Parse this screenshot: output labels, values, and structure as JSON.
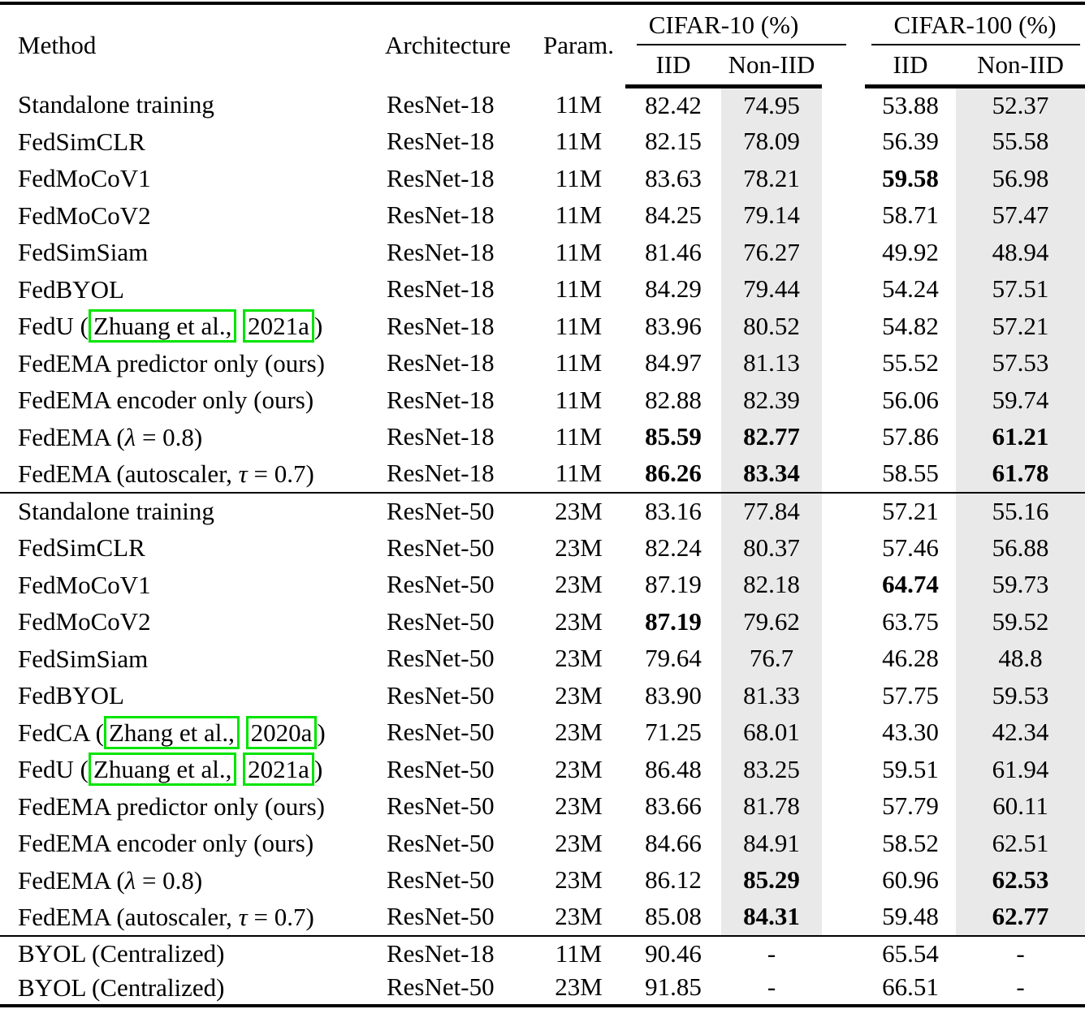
{
  "table": {
    "colors": {
      "shaded": "#e9e9e9",
      "link_box": "#00e400",
      "rule": "#000000"
    },
    "header": {
      "method": "Method",
      "architecture": "Architecture",
      "param": "Param.",
      "group1": "CIFAR-10 (%)",
      "group2": "CIFAR-100 (%)",
      "sub": [
        "IID",
        "Non-IID",
        "IID",
        "Non-IID"
      ]
    },
    "sections": [
      {
        "shaded": true,
        "rows": [
          {
            "method": [
              {
                "t": "Standalone training"
              }
            ],
            "arch": "ResNet-18",
            "param": "11M",
            "values": [
              {
                "v": "82.42"
              },
              {
                "v": "74.95"
              },
              {
                "v": "53.88"
              },
              {
                "v": "52.37"
              }
            ]
          },
          {
            "method": [
              {
                "t": "FedSimCLR"
              }
            ],
            "arch": "ResNet-18",
            "param": "11M",
            "values": [
              {
                "v": "82.15"
              },
              {
                "v": "78.09"
              },
              {
                "v": "56.39"
              },
              {
                "v": "55.58"
              }
            ]
          },
          {
            "method": [
              {
                "t": "FedMoCoV1"
              }
            ],
            "arch": "ResNet-18",
            "param": "11M",
            "values": [
              {
                "v": "83.63"
              },
              {
                "v": "78.21"
              },
              {
                "v": "59.58",
                "b": true
              },
              {
                "v": "56.98"
              }
            ]
          },
          {
            "method": [
              {
                "t": "FedMoCoV2"
              }
            ],
            "arch": "ResNet-18",
            "param": "11M",
            "values": [
              {
                "v": "84.25"
              },
              {
                "v": "79.14"
              },
              {
                "v": "58.71"
              },
              {
                "v": "57.47"
              }
            ]
          },
          {
            "method": [
              {
                "t": "FedSimSiam"
              }
            ],
            "arch": "ResNet-18",
            "param": "11M",
            "values": [
              {
                "v": "81.46"
              },
              {
                "v": "76.27"
              },
              {
                "v": "49.92"
              },
              {
                "v": "48.94"
              }
            ]
          },
          {
            "method": [
              {
                "t": "FedBYOL"
              }
            ],
            "arch": "ResNet-18",
            "param": "11M",
            "values": [
              {
                "v": "84.29"
              },
              {
                "v": "79.44"
              },
              {
                "v": "54.24"
              },
              {
                "v": "57.51"
              }
            ]
          },
          {
            "method": [
              {
                "t": "FedU ("
              },
              {
                "t": "Zhuang et al.,",
                "box": true
              },
              {
                "t": " "
              },
              {
                "t": "2021a",
                "box": true
              },
              {
                "t": ")"
              }
            ],
            "arch": "ResNet-18",
            "param": "11M",
            "values": [
              {
                "v": "83.96"
              },
              {
                "v": "80.52"
              },
              {
                "v": "54.82"
              },
              {
                "v": "57.21"
              }
            ]
          },
          {
            "method": [
              {
                "t": "FedEMA predictor only (ours)"
              }
            ],
            "arch": "ResNet-18",
            "param": "11M",
            "values": [
              {
                "v": "84.97"
              },
              {
                "v": "81.13"
              },
              {
                "v": "55.52"
              },
              {
                "v": "57.53"
              }
            ]
          },
          {
            "method": [
              {
                "t": "FedEMA encoder only (ours)"
              }
            ],
            "arch": "ResNet-18",
            "param": "11M",
            "values": [
              {
                "v": "82.88"
              },
              {
                "v": "82.39"
              },
              {
                "v": "56.06"
              },
              {
                "v": "59.74"
              }
            ]
          },
          {
            "method": [
              {
                "t": "FedEMA ("
              },
              {
                "t": "λ",
                "it": true
              },
              {
                "t": " = 0.8)"
              }
            ],
            "arch": "ResNet-18",
            "param": "11M",
            "values": [
              {
                "v": "85.59",
                "b": true
              },
              {
                "v": "82.77",
                "b": true
              },
              {
                "v": "57.86"
              },
              {
                "v": "61.21",
                "b": true
              }
            ]
          },
          {
            "method": [
              {
                "t": "FedEMA (autoscaler, "
              },
              {
                "t": "τ",
                "it": true
              },
              {
                "t": " = 0.7)"
              }
            ],
            "arch": "ResNet-18",
            "param": "11M",
            "values": [
              {
                "v": "86.26",
                "b": true
              },
              {
                "v": "83.34",
                "b": true
              },
              {
                "v": "58.55"
              },
              {
                "v": "61.78",
                "b": true
              }
            ]
          }
        ]
      },
      {
        "shaded": true,
        "rows": [
          {
            "method": [
              {
                "t": "Standalone training"
              }
            ],
            "arch": "ResNet-50",
            "param": "23M",
            "values": [
              {
                "v": "83.16"
              },
              {
                "v": "77.84"
              },
              {
                "v": "57.21"
              },
              {
                "v": "55.16"
              }
            ]
          },
          {
            "method": [
              {
                "t": "FedSimCLR"
              }
            ],
            "arch": "ResNet-50",
            "param": "23M",
            "values": [
              {
                "v": "82.24"
              },
              {
                "v": "80.37"
              },
              {
                "v": "57.46"
              },
              {
                "v": "56.88"
              }
            ]
          },
          {
            "method": [
              {
                "t": "FedMoCoV1"
              }
            ],
            "arch": "ResNet-50",
            "param": "23M",
            "values": [
              {
                "v": "87.19"
              },
              {
                "v": "82.18"
              },
              {
                "v": "64.74",
                "b": true
              },
              {
                "v": "59.73"
              }
            ]
          },
          {
            "method": [
              {
                "t": "FedMoCoV2"
              }
            ],
            "arch": "ResNet-50",
            "param": "23M",
            "values": [
              {
                "v": "87.19",
                "b": true
              },
              {
                "v": "79.62"
              },
              {
                "v": "63.75"
              },
              {
                "v": "59.52"
              }
            ]
          },
          {
            "method": [
              {
                "t": "FedSimSiam"
              }
            ],
            "arch": "ResNet-50",
            "param": "23M",
            "values": [
              {
                "v": "79.64"
              },
              {
                "v": "76.7"
              },
              {
                "v": "46.28"
              },
              {
                "v": "48.8"
              }
            ]
          },
          {
            "method": [
              {
                "t": "FedBYOL"
              }
            ],
            "arch": "ResNet-50",
            "param": "23M",
            "values": [
              {
                "v": "83.90"
              },
              {
                "v": "81.33"
              },
              {
                "v": "57.75"
              },
              {
                "v": "59.53"
              }
            ]
          },
          {
            "method": [
              {
                "t": "FedCA ("
              },
              {
                "t": "Zhang et al.,",
                "box": true
              },
              {
                "t": " "
              },
              {
                "t": "2020a",
                "box": true
              },
              {
                "t": ")"
              }
            ],
            "arch": "ResNet-50",
            "param": "23M",
            "values": [
              {
                "v": "71.25"
              },
              {
                "v": "68.01"
              },
              {
                "v": "43.30"
              },
              {
                "v": "42.34"
              }
            ]
          },
          {
            "method": [
              {
                "t": "FedU ("
              },
              {
                "t": "Zhuang et al.,",
                "box": true
              },
              {
                "t": " "
              },
              {
                "t": "2021a",
                "box": true
              },
              {
                "t": ")"
              }
            ],
            "arch": "ResNet-50",
            "param": "23M",
            "values": [
              {
                "v": "86.48"
              },
              {
                "v": "83.25"
              },
              {
                "v": "59.51"
              },
              {
                "v": "61.94"
              }
            ]
          },
          {
            "method": [
              {
                "t": "FedEMA predictor only (ours)"
              }
            ],
            "arch": "ResNet-50",
            "param": "23M",
            "values": [
              {
                "v": "83.66"
              },
              {
                "v": "81.78"
              },
              {
                "v": "57.79"
              },
              {
                "v": "60.11"
              }
            ]
          },
          {
            "method": [
              {
                "t": "FedEMA encoder only (ours)"
              }
            ],
            "arch": "ResNet-50",
            "param": "23M",
            "values": [
              {
                "v": "84.66"
              },
              {
                "v": "84.91"
              },
              {
                "v": "58.52"
              },
              {
                "v": "62.51"
              }
            ]
          },
          {
            "method": [
              {
                "t": "FedEMA ("
              },
              {
                "t": "λ",
                "it": true
              },
              {
                "t": " = 0.8)"
              }
            ],
            "arch": "ResNet-50",
            "param": "23M",
            "values": [
              {
                "v": "86.12"
              },
              {
                "v": "85.29",
                "b": true
              },
              {
                "v": "60.96"
              },
              {
                "v": "62.53",
                "b": true
              }
            ]
          },
          {
            "method": [
              {
                "t": "FedEMA (autoscaler, "
              },
              {
                "t": "τ",
                "it": true
              },
              {
                "t": " = 0.7)"
              }
            ],
            "arch": "ResNet-50",
            "param": "23M",
            "values": [
              {
                "v": "85.08"
              },
              {
                "v": "84.31",
                "b": true
              },
              {
                "v": "59.48"
              },
              {
                "v": "62.77",
                "b": true
              }
            ]
          }
        ]
      },
      {
        "shaded": false,
        "rows": [
          {
            "method": [
              {
                "t": "BYOL (Centralized)"
              }
            ],
            "arch": "ResNet-18",
            "param": "11M",
            "values": [
              {
                "v": "90.46"
              },
              {
                "v": "-"
              },
              {
                "v": "65.54"
              },
              {
                "v": "-"
              }
            ]
          },
          {
            "method": [
              {
                "t": "BYOL (Centralized)"
              }
            ],
            "arch": "ResNet-50",
            "param": "23M",
            "values": [
              {
                "v": "91.85"
              },
              {
                "v": "-"
              },
              {
                "v": "66.51"
              },
              {
                "v": "-"
              }
            ]
          }
        ]
      }
    ]
  }
}
